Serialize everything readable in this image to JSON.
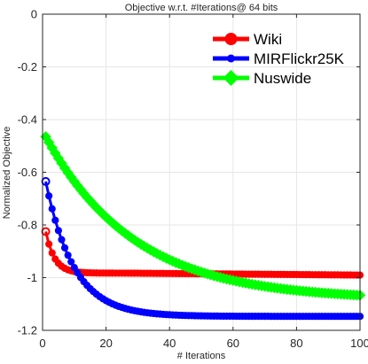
{
  "chart_data": {
    "type": "line",
    "title": "Objective w.r.t. #Iterations@ 64 bits",
    "xlabel": "# Iterations",
    "ylabel": "Normalized Objective",
    "xlim": [
      0,
      100
    ],
    "ylim": [
      -1.2,
      0
    ],
    "xticks": [
      0,
      20,
      40,
      60,
      80,
      100
    ],
    "yticks": [
      0,
      -0.2,
      -0.4,
      -0.6,
      -0.8,
      -1,
      -1.2
    ],
    "xtick_labels": [
      "0",
      "20",
      "40",
      "60",
      "80",
      "100"
    ],
    "ytick_labels": [
      "0",
      "-0.2",
      "-0.4",
      "-0.6",
      "-0.8",
      "-1",
      "-1.2"
    ],
    "grid": true,
    "legend_position": "top-right",
    "x": [
      1,
      2,
      3,
      4,
      5,
      6,
      7,
      8,
      9,
      10,
      11,
      12,
      13,
      14,
      15,
      16,
      17,
      18,
      19,
      20,
      21,
      22,
      23,
      24,
      25,
      26,
      27,
      28,
      29,
      30,
      31,
      32,
      33,
      34,
      35,
      36,
      37,
      38,
      39,
      40,
      41,
      42,
      43,
      44,
      45,
      46,
      47,
      48,
      49,
      50,
      51,
      52,
      53,
      54,
      55,
      56,
      57,
      58,
      59,
      60,
      61,
      62,
      63,
      64,
      65,
      66,
      67,
      68,
      69,
      70,
      71,
      72,
      73,
      74,
      75,
      76,
      77,
      78,
      79,
      80,
      81,
      82,
      83,
      84,
      85,
      86,
      87,
      88,
      89,
      90,
      91,
      92,
      93,
      94,
      95,
      96,
      97,
      98,
      99,
      100
    ],
    "series": [
      {
        "name": "Wiki",
        "color": "#ff0000",
        "marker": "circle",
        "values": [
          -0.825,
          -0.8728,
          -0.9061,
          -0.9293,
          -0.9455,
          -0.9568,
          -0.9646,
          -0.9701,
          -0.9739,
          -0.9766,
          -0.9785,
          -0.9798,
          -0.9807,
          -0.9813,
          -0.9818,
          -0.9821,
          -0.9823,
          -0.9825,
          -0.9826,
          -0.9827,
          -0.9828,
          -0.9828,
          -0.9829,
          -0.9829,
          -0.9829,
          -0.983,
          -0.983,
          -0.9831,
          -0.9832,
          -0.9833,
          -0.9834,
          -0.9835,
          -0.9836,
          -0.9837,
          -0.9838,
          -0.9839,
          -0.984,
          -0.9841,
          -0.9842,
          -0.9843,
          -0.9844,
          -0.9845,
          -0.9846,
          -0.9847,
          -0.9848,
          -0.9849,
          -0.985,
          -0.9851,
          -0.9852,
          -0.9853,
          -0.9854,
          -0.9855,
          -0.9856,
          -0.9857,
          -0.9858,
          -0.9859,
          -0.986,
          -0.9861,
          -0.9862,
          -0.9863,
          -0.9864,
          -0.9865,
          -0.9866,
          -0.9867,
          -0.9868,
          -0.9869,
          -0.987,
          -0.9871,
          -0.9872,
          -0.9873,
          -0.9874,
          -0.9875,
          -0.9876,
          -0.9877,
          -0.9878,
          -0.9879,
          -0.988,
          -0.9881,
          -0.9882,
          -0.9883,
          -0.9884,
          -0.9885,
          -0.9886,
          -0.9887,
          -0.9888,
          -0.9889,
          -0.989,
          -0.9891,
          -0.9892,
          -0.9893,
          -0.9894,
          -0.9895,
          -0.9896,
          -0.9897,
          -0.9898,
          -0.9899,
          -0.99,
          -0.9901,
          -0.9902,
          -0.9903
        ]
      },
      {
        "name": "MIRFlickr25K",
        "color": "#0000ff",
        "marker": "circle",
        "values": [
          -0.635,
          -0.6897,
          -0.7386,
          -0.7822,
          -0.8212,
          -0.856,
          -0.8871,
          -0.9149,
          -0.9397,
          -0.9618,
          -0.9816,
          -0.9993,
          -1.0151,
          -1.0292,
          -1.0418,
          -1.053,
          -1.0631,
          -1.0721,
          -1.0801,
          -1.0873,
          -1.0937,
          -1.0994,
          -1.1045,
          -1.1091,
          -1.1131,
          -1.1168,
          -1.12,
          -1.1229,
          -1.1255,
          -1.1278,
          -1.1299,
          -1.1317,
          -1.1334,
          -1.1348,
          -1.1361,
          -1.1373,
          -1.1383,
          -1.1393,
          -1.1401,
          -1.1408,
          -1.1415,
          -1.1421,
          -1.1426,
          -1.1431,
          -1.1435,
          -1.1439,
          -1.1442,
          -1.1445,
          -1.1448,
          -1.145,
          -1.1452,
          -1.1454,
          -1.1456,
          -1.1457,
          -1.1459,
          -1.146,
          -1.1461,
          -1.1462,
          -1.1463,
          -1.1463,
          -1.1464,
          -1.1465,
          -1.1465,
          -1.1466,
          -1.1466,
          -1.1466,
          -1.1467,
          -1.1467,
          -1.1467,
          -1.1467,
          -1.1467,
          -1.1468,
          -1.1468,
          -1.1468,
          -1.1468,
          -1.1468,
          -1.1468,
          -1.1468,
          -1.1468,
          -1.1468,
          -1.1468,
          -1.1468,
          -1.1469,
          -1.1469,
          -1.1469,
          -1.1469,
          -1.1469,
          -1.1469,
          -1.1469,
          -1.1469,
          -1.1469,
          -1.1469,
          -1.1469,
          -1.1469,
          -1.1469,
          -1.1469,
          -1.1469,
          -1.1469,
          -1.1469,
          -1.1469
        ]
      },
      {
        "name": "Nuswide",
        "color": "#00ff00",
        "marker": "diamond",
        "values": [
          -0.465,
          -0.4866,
          -0.5075,
          -0.5277,
          -0.5471,
          -0.5659,
          -0.5841,
          -0.6016,
          -0.6186,
          -0.6349,
          -0.6507,
          -0.6659,
          -0.6806,
          -0.6948,
          -0.7085,
          -0.7218,
          -0.7346,
          -0.7469,
          -0.7588,
          -0.7703,
          -0.7814,
          -0.7921,
          -0.8025,
          -0.8125,
          -0.8221,
          -0.8314,
          -0.8404,
          -0.849,
          -0.8574,
          -0.8655,
          -0.8733,
          -0.8808,
          -0.888,
          -0.895,
          -0.9018,
          -0.9083,
          -0.9146,
          -0.9206,
          -0.9265,
          -0.9321,
          -0.9375,
          -0.9428,
          -0.9478,
          -0.9527,
          -0.9574,
          -0.9619,
          -0.9663,
          -0.9705,
          -0.9746,
          -0.9785,
          -0.9823,
          -0.9859,
          -0.9894,
          -0.9928,
          -0.9961,
          -0.9992,
          -1.0023,
          -1.0052,
          -1.008,
          -1.0107,
          -1.0133,
          -1.0159,
          -1.0183,
          -1.0206,
          -1.0229,
          -1.0251,
          -1.0272,
          -1.0292,
          -1.0312,
          -1.033,
          -1.0349,
          -1.0366,
          -1.0383,
          -1.0399,
          -1.0415,
          -1.043,
          -1.0445,
          -1.0459,
          -1.0472,
          -1.0485,
          -1.0498,
          -1.051,
          -1.0522,
          -1.0533,
          -1.0544,
          -1.0555,
          -1.0565,
          -1.0575,
          -1.0584,
          -1.0593,
          -1.0602,
          -1.0611,
          -1.0619,
          -1.0627,
          -1.0635,
          -1.0642,
          -1.0649,
          -1.0656,
          -1.0663,
          -1.0669
        ]
      }
    ]
  }
}
